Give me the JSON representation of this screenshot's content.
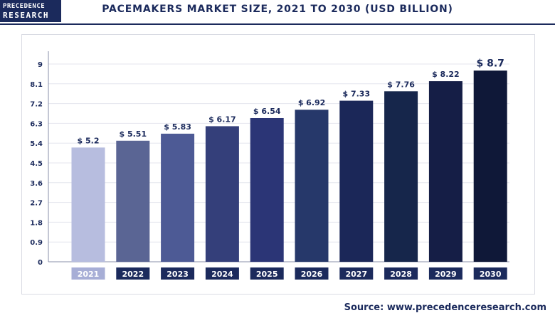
{
  "brand": {
    "line1": "PRECEDENCE",
    "line2": "RESEARCH"
  },
  "chart_data": {
    "type": "bar",
    "title": "PACEMAKERS MARKET SIZE, 2021 TO 2030 (USD BILLION)",
    "categories": [
      "2021",
      "2022",
      "2023",
      "2024",
      "2025",
      "2026",
      "2027",
      "2028",
      "2029",
      "2030"
    ],
    "values": [
      5.2,
      5.51,
      5.83,
      6.17,
      6.54,
      6.92,
      7.33,
      7.76,
      8.22,
      8.7
    ],
    "data_labels": [
      "$ 5.2",
      "$ 5.51",
      "$ 5.83",
      "$ 6.17",
      "$ 6.54",
      "$ 6.92",
      "$ 7.33",
      "$ 7.76",
      "$ 8.22",
      "$ 8.7"
    ],
    "yticks": [
      "0",
      "0.9",
      "1.8",
      "2.7",
      "3.6",
      "4.5",
      "5.4",
      "6.3",
      "7.2",
      "8.1",
      "9"
    ],
    "ylim": [
      0,
      9
    ],
    "grid": true,
    "bar_colors": [
      "#b7bddf",
      "#5a6594",
      "#4d5a95",
      "#343f7a",
      "#2b3576",
      "#26386a",
      "#1b2758",
      "#16264b",
      "#151e46",
      "#0f1838"
    ],
    "label_box_color": "#1b2a5c",
    "first_label_box_color": "#a7aed6",
    "text_color": "#1b2a5c"
  },
  "source": {
    "prefix": "Source: ",
    "url": "www.precedenceresearch.com"
  }
}
